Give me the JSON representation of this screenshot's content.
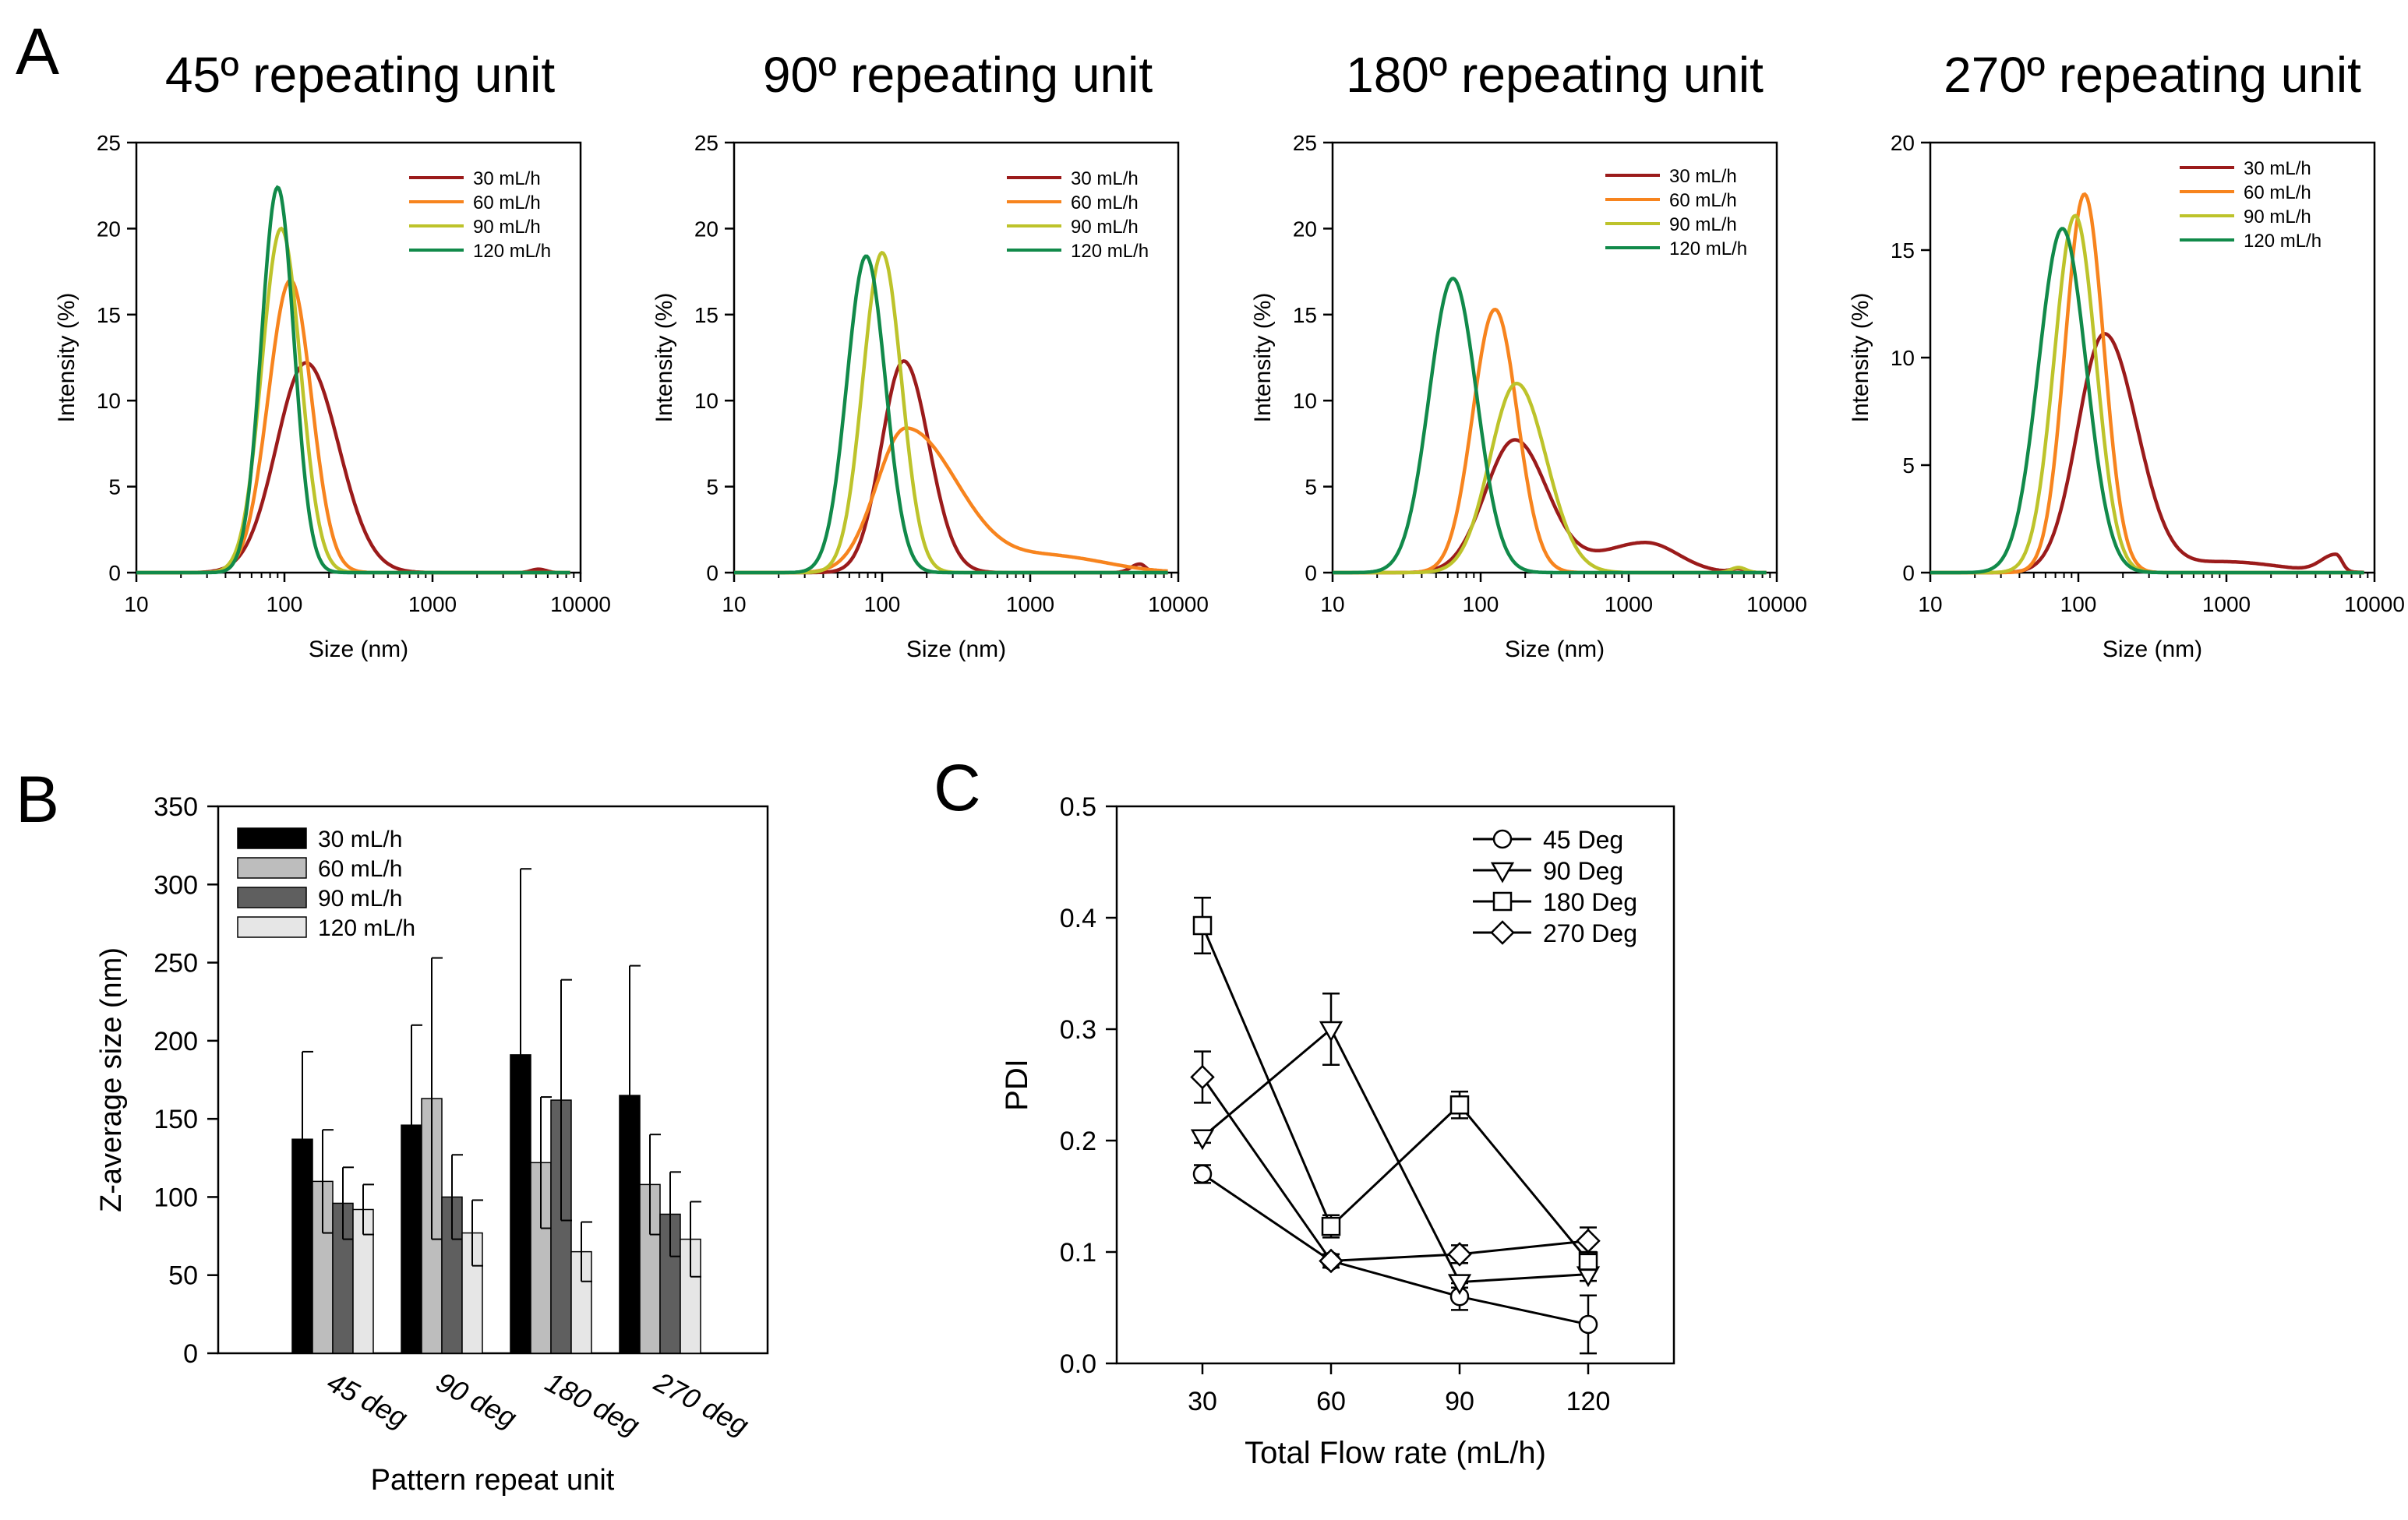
{
  "panel_labels": {
    "a": "A",
    "b": "B",
    "c": "C"
  },
  "colors": {
    "30": "#9b1b1b",
    "60": "#f7841e",
    "90": "#bdc32b",
    "120": "#118a4a",
    "bar30": "#000000",
    "bar60": "#bdbdbd",
    "bar90": "#5f5f5f",
    "bar120": "#e6e6e6"
  },
  "chart_data": [
    {
      "id": "a1",
      "type": "line",
      "title": "45º repeating unit",
      "xlabel": "Size (nm)",
      "ylabel": "Intensity (%)",
      "xscale": "log",
      "xlim": [
        10,
        10000
      ],
      "ylim": [
        0,
        25
      ],
      "xticks": [
        "10",
        "100",
        "1000",
        "10000"
      ],
      "yticks": [
        "0",
        "5",
        "10",
        "15",
        "20",
        "25"
      ],
      "legend": [
        "30 mL/h",
        "60 mL/h",
        "90 mL/h",
        "120 mL/h"
      ],
      "series": [
        {
          "name": "30 mL/h",
          "peaks": [
            {
              "center": 140,
              "height": 12.2,
              "wl": 0.2,
              "wr": 0.22
            },
            {
              "center": 5200,
              "height": 0.2,
              "wl": 0.05,
              "wr": 0.05
            }
          ]
        },
        {
          "name": "60 mL/h",
          "peaks": [
            {
              "center": 110,
              "height": 17,
              "wl": 0.15,
              "wr": 0.14
            }
          ]
        },
        {
          "name": "90 mL/h",
          "peaks": [
            {
              "center": 95,
              "height": 20,
              "wl": 0.13,
              "wr": 0.13
            }
          ]
        },
        {
          "name": "120 mL/h",
          "peaks": [
            {
              "center": 90,
              "height": 22.4,
              "wl": 0.11,
              "wr": 0.11
            }
          ]
        }
      ]
    },
    {
      "id": "a2",
      "type": "line",
      "title": "90º repeating unit",
      "xlabel": "Size (nm)",
      "ylabel": "Intensity (%)",
      "xscale": "log",
      "xlim": [
        10,
        10000
      ],
      "ylim": [
        0,
        25
      ],
      "xticks": [
        "10",
        "100",
        "1000",
        "10000"
      ],
      "yticks": [
        "0",
        "5",
        "10",
        "15",
        "20",
        "25"
      ],
      "legend": [
        "30 mL/h",
        "60 mL/h",
        "90 mL/h",
        "120 mL/h"
      ],
      "series": [
        {
          "name": "30 mL/h",
          "peaks": [
            {
              "center": 140,
              "height": 12.3,
              "wl": 0.15,
              "wr": 0.17
            },
            {
              "center": 5500,
              "height": 0.5,
              "wl": 0.06,
              "wr": 0.04
            }
          ]
        },
        {
          "name": "60 mL/h",
          "peaks": [
            {
              "center": 145,
              "height": 8.4,
              "wl": 0.2,
              "wr": 0.35
            },
            {
              "center": 1500,
              "height": 0.9,
              "wl": 0.3,
              "wr": 0.35
            }
          ]
        },
        {
          "name": "90 mL/h",
          "peaks": [
            {
              "center": 100,
              "height": 18.6,
              "wl": 0.13,
              "wr": 0.13
            }
          ]
        },
        {
          "name": "120 mL/h",
          "peaks": [
            {
              "center": 78,
              "height": 18.4,
              "wl": 0.13,
              "wr": 0.13
            }
          ]
        }
      ]
    },
    {
      "id": "a3",
      "type": "line",
      "title": "180º repeating unit",
      "xlabel": "Size (nm)",
      "ylabel": "Intensity (%)",
      "xscale": "log",
      "xlim": [
        10,
        10000
      ],
      "ylim": [
        0,
        25
      ],
      "xticks": [
        "10",
        "100",
        "1000",
        "10000"
      ],
      "yticks": [
        "0",
        "5",
        "10",
        "15",
        "20",
        "25"
      ],
      "legend": [
        "30 mL/h",
        "60 mL/h",
        "90 mL/h",
        "120 mL/h"
      ],
      "series": [
        {
          "name": "30 mL/h",
          "peaks": [
            {
              "center": 170,
              "height": 7.7,
              "wl": 0.2,
              "wr": 0.22
            },
            {
              "center": 1300,
              "height": 1.75,
              "wl": 0.3,
              "wr": 0.22
            },
            {
              "center": 5500,
              "height": 0.2,
              "wl": 0.05,
              "wr": 0.05
            }
          ]
        },
        {
          "name": "60 mL/h",
          "peaks": [
            {
              "center": 125,
              "height": 15.3,
              "wl": 0.15,
              "wr": 0.15
            }
          ]
        },
        {
          "name": "90 mL/h",
          "peaks": [
            {
              "center": 175,
              "height": 11,
              "wl": 0.18,
              "wr": 0.2
            },
            {
              "center": 5500,
              "height": 0.3,
              "wl": 0.05,
              "wr": 0.05
            }
          ]
        },
        {
          "name": "120 mL/h",
          "peaks": [
            {
              "center": 65,
              "height": 17.1,
              "wl": 0.16,
              "wr": 0.16
            }
          ]
        }
      ]
    },
    {
      "id": "a4",
      "type": "line",
      "title": "270º repeating unit",
      "xlabel": "Size (nm)",
      "ylabel": "Intensity (%)",
      "xscale": "log",
      "xlim": [
        10,
        10000
      ],
      "ylim": [
        0,
        20
      ],
      "xticks": [
        "10",
        "100",
        "1000",
        "10000"
      ],
      "yticks": [
        "0",
        "5",
        "10",
        "15",
        "20"
      ],
      "legend": [
        "30 mL/h",
        "60 mL/h",
        "90 mL/h",
        "120 mL/h"
      ],
      "series": [
        {
          "name": "30 mL/h",
          "peaks": [
            {
              "center": 150,
              "height": 11.1,
              "wl": 0.18,
              "wr": 0.22
            },
            {
              "center": 1000,
              "height": 0.5,
              "wl": 0.3,
              "wr": 0.35
            },
            {
              "center": 5500,
              "height": 0.8,
              "wl": 0.1,
              "wr": 0.04
            }
          ]
        },
        {
          "name": "60 mL/h",
          "peaks": [
            {
              "center": 110,
              "height": 17.6,
              "wl": 0.13,
              "wr": 0.13
            }
          ]
        },
        {
          "name": "90 mL/h",
          "peaks": [
            {
              "center": 95,
              "height": 16.6,
              "wl": 0.14,
              "wr": 0.14
            }
          ]
        },
        {
          "name": "120 mL/h",
          "peaks": [
            {
              "center": 78,
              "height": 16,
              "wl": 0.16,
              "wr": 0.16
            }
          ]
        }
      ]
    },
    {
      "id": "b",
      "type": "bar",
      "xlabel": "Pattern repeat unit",
      "ylabel": "Z-average size (nm)",
      "ylim": [
        0,
        350
      ],
      "yticks": [
        "0",
        "50",
        "100",
        "150",
        "200",
        "250",
        "300",
        "350"
      ],
      "categories": [
        "45 deg",
        "90 deg",
        "180 deg",
        "270 deg"
      ],
      "legend": [
        "30 mL/h",
        "60  mL/h",
        "90  mL/h",
        "120 mL/h"
      ],
      "series": [
        {
          "name": "30 mL/h",
          "values": [
            137,
            146,
            191,
            165
          ],
          "errors": [
            56,
            64,
            119,
            83
          ]
        },
        {
          "name": "60 mL/h",
          "values": [
            110,
            163,
            122,
            108
          ],
          "errors": [
            33,
            90,
            42,
            32
          ]
        },
        {
          "name": "90 mL/h",
          "values": [
            96,
            100,
            162,
            89
          ],
          "errors": [
            23,
            27,
            77,
            27
          ]
        },
        {
          "name": "120 mL/h",
          "values": [
            92,
            77,
            65,
            73
          ],
          "errors": [
            16,
            21,
            19,
            24
          ]
        }
      ]
    },
    {
      "id": "c",
      "type": "line",
      "xlabel": "Total Flow rate (mL/h)",
      "ylabel": "PDI",
      "xlim": [
        10,
        140
      ],
      "ylim": [
        0,
        0.5
      ],
      "x": [
        30,
        60,
        90,
        120
      ],
      "xticks": [
        "30",
        "60",
        "90",
        "120"
      ],
      "yticks": [
        "0.0",
        "0.1",
        "0.2",
        "0.3",
        "0.4",
        "0.5"
      ],
      "legend": [
        "45 Deg",
        "90 Deg",
        "180 Deg",
        "270 Deg"
      ],
      "series": [
        {
          "name": "45 Deg",
          "marker": "circle",
          "values": [
            0.17,
            0.092,
            0.06,
            0.035
          ],
          "errors": [
            0.008,
            0.006,
            0.012,
            0.026
          ]
        },
        {
          "name": "90 Deg",
          "marker": "triangle",
          "values": [
            0.203,
            0.3,
            0.073,
            0.08
          ],
          "errors": [
            0.005,
            0.032,
            0.005,
            0.006
          ]
        },
        {
          "name": "180 Deg",
          "marker": "square",
          "values": [
            0.393,
            0.123,
            0.232,
            0.092
          ],
          "errors": [
            0.025,
            0.01,
            0.012,
            0.008
          ]
        },
        {
          "name": "270 Deg",
          "marker": "diamond",
          "values": [
            0.257,
            0.092,
            0.098,
            0.11
          ],
          "errors": [
            0.023,
            0.006,
            0.008,
            0.012
          ]
        }
      ]
    }
  ]
}
